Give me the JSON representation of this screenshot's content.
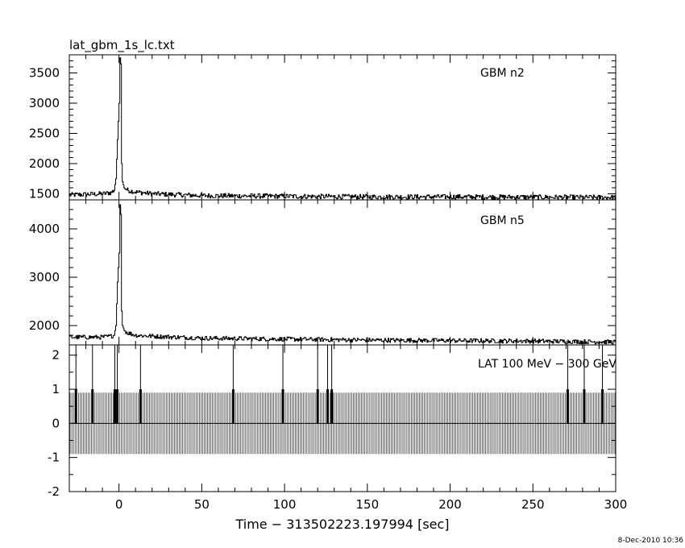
{
  "chart_data": [
    {
      "type": "line",
      "title": "lat_gbm_1s_lc.txt",
      "panel_label": "GBM n2",
      "xlim": [
        -30,
        300
      ],
      "ylim": [
        1400,
        3800
      ],
      "yticks": [
        1500,
        2000,
        2500,
        3000,
        3500
      ],
      "yticks_minor_step": 100,
      "baseline": 1450,
      "noise_amplitude": 40,
      "series": [
        {
          "x": [
            -30,
            -20,
            -10,
            -5,
            -3,
            -2,
            -1,
            0,
            0.5,
            1,
            1.5,
            2,
            3,
            5,
            10,
            20,
            50,
            100,
            150,
            200,
            250,
            300
          ],
          "values": [
            1480,
            1490,
            1500,
            1520,
            1560,
            1750,
            2400,
            3000,
            3750,
            3650,
            2000,
            1700,
            1600,
            1560,
            1530,
            1500,
            1470,
            1460,
            1450,
            1450,
            1445,
            1440
          ]
        }
      ]
    },
    {
      "type": "line",
      "panel_label": "GBM n5",
      "xlim": [
        -30,
        300
      ],
      "ylim": [
        1600,
        4600
      ],
      "yticks": [
        2000,
        3000,
        4000
      ],
      "yticks_minor_step": 200,
      "baseline": 1700,
      "noise_amplitude": 45,
      "series": [
        {
          "x": [
            -30,
            -20,
            -10,
            -5,
            -3,
            -2,
            -1,
            0,
            0.5,
            1,
            1.5,
            2,
            3,
            5,
            10,
            20,
            50,
            100,
            150,
            200,
            250,
            300
          ],
          "values": [
            1760,
            1760,
            1760,
            1780,
            1800,
            2000,
            2900,
            3500,
            4500,
            4300,
            2300,
            2000,
            1900,
            1850,
            1800,
            1780,
            1740,
            1720,
            1700,
            1690,
            1680,
            1660
          ]
        }
      ]
    },
    {
      "type": "bar",
      "panel_label": "LAT 100 MeV − 300 GeV",
      "xlim": [
        -30,
        300
      ],
      "ylim": [
        -2,
        2.3
      ],
      "yticks": [
        -2,
        -1,
        0,
        1,
        2
      ],
      "xticks": [
        0,
        50,
        100,
        150,
        200,
        250,
        300
      ],
      "xticks_minor_step": 10,
      "xlabel": "Time − 313502223.197994 [sec]",
      "background_level": 0,
      "background_bin_step": 1,
      "background_error": 0.9,
      "events": [
        {
          "x": -26,
          "count": 1,
          "error": 2.3
        },
        {
          "x": -16,
          "count": 1,
          "error": 2.3
        },
        {
          "x": -2.5,
          "count": 1,
          "error": 2.3
        },
        {
          "x": -1,
          "count": 1,
          "error": 2.3
        },
        {
          "x": 13,
          "count": 1,
          "error": 2.3
        },
        {
          "x": 69,
          "count": 1,
          "error": 2.3
        },
        {
          "x": 99,
          "count": 1,
          "error": 2.3
        },
        {
          "x": 120,
          "count": 1,
          "error": 2.3
        },
        {
          "x": 126,
          "count": 1,
          "error": 2.3
        },
        {
          "x": 128.5,
          "count": 1,
          "error": 2.3
        },
        {
          "x": 271,
          "count": 1,
          "error": 2.3
        },
        {
          "x": 281,
          "count": 1,
          "error": 2.3
        },
        {
          "x": 292,
          "count": 1,
          "error": 2.3
        }
      ]
    }
  ],
  "footer": {
    "timestamp": "8-Dec-2010 10:36"
  }
}
